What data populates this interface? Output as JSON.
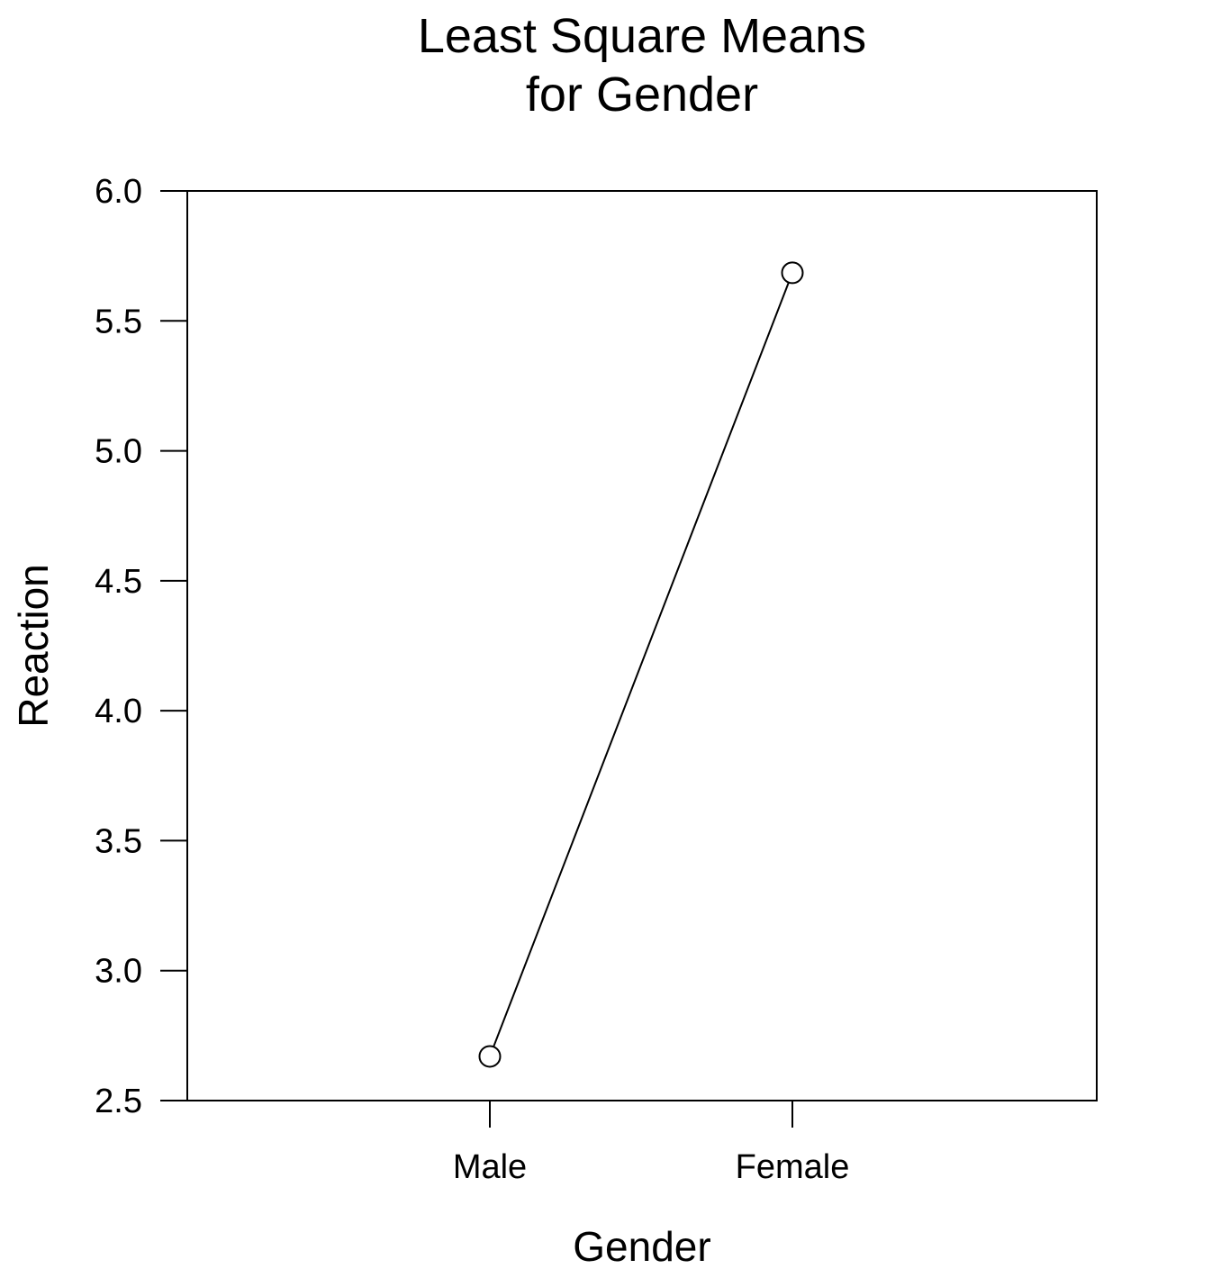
{
  "chart_data": {
    "type": "line",
    "title": [
      "Least Square Means",
      "for Gender"
    ],
    "xlabel": "Gender",
    "ylabel": "Reaction",
    "categories": [
      "Male",
      "Female"
    ],
    "series": [
      {
        "values": [
          2.67,
          5.685
        ],
        "marker": "open-circle",
        "color": "#000000"
      }
    ],
    "ylim": [
      2.5,
      6.0
    ],
    "yticks": [
      2.5,
      3.0,
      3.5,
      4.0,
      4.5,
      5.0,
      5.5,
      6.0
    ],
    "ytick_labels": [
      "2.5",
      "3.0",
      "3.5",
      "4.0",
      "4.5",
      "5.0",
      "5.5",
      "6.0"
    ],
    "grid": false,
    "legend": "none"
  }
}
